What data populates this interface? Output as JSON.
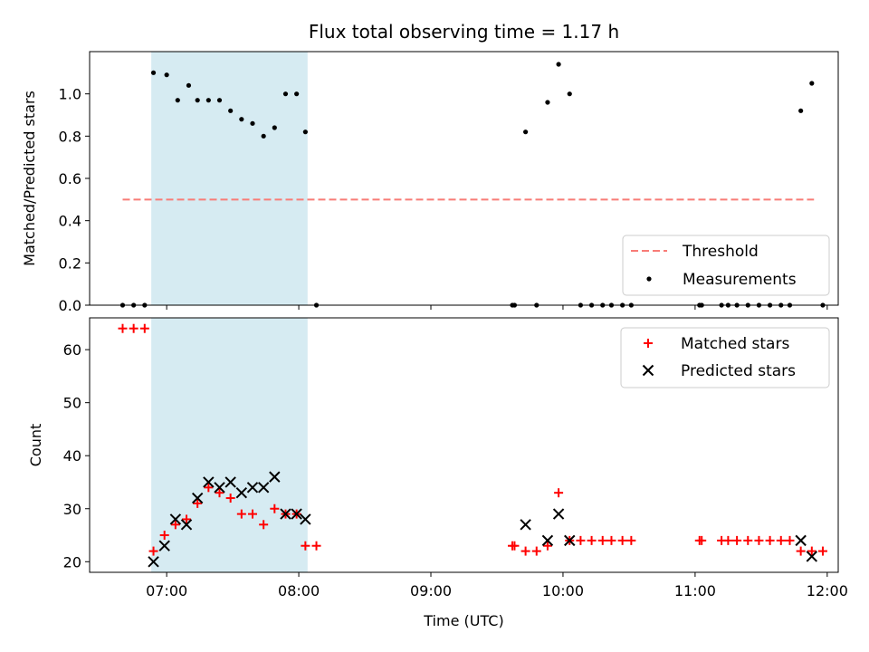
{
  "chart_data": [
    {
      "type": "scatter",
      "title": "Flux total observing time = 1.17 h",
      "ylabel": "Matched/Predicted stars",
      "xlim": [
        "06:25",
        "12:05"
      ],
      "ylim": [
        0,
        1.2
      ],
      "yticks": [
        "0.0",
        "0.2",
        "0.4",
        "0.6",
        "0.8",
        "1.0"
      ],
      "shaded_span": [
        "06:53",
        "08:04"
      ],
      "threshold": {
        "name": "Threshold",
        "value": 0.5,
        "x_range": [
          "06:40",
          "11:54"
        ],
        "color": "#f87c77"
      },
      "series": [
        {
          "name": "Measurements",
          "color": "#000000",
          "points": [
            [
              "06:40",
              0
            ],
            [
              "06:45",
              0
            ],
            [
              "06:50",
              0
            ],
            [
              "06:54",
              1.1
            ],
            [
              "07:00",
              1.09
            ],
            [
              "07:05",
              0.97
            ],
            [
              "07:10",
              1.04
            ],
            [
              "07:14",
              0.97
            ],
            [
              "07:19",
              0.97
            ],
            [
              "07:24",
              0.97
            ],
            [
              "07:29",
              0.92
            ],
            [
              "07:34",
              0.88
            ],
            [
              "07:39",
              0.86
            ],
            [
              "07:44",
              0.8
            ],
            [
              "07:49",
              0.84
            ],
            [
              "07:54",
              1.0
            ],
            [
              "07:59",
              1.0
            ],
            [
              "08:03",
              0.82
            ],
            [
              "08:08",
              0
            ],
            [
              "09:37",
              0
            ],
            [
              "09:38",
              0
            ],
            [
              "09:43",
              0.82
            ],
            [
              "09:48",
              0
            ],
            [
              "09:53",
              0.96
            ],
            [
              "09:58",
              1.14
            ],
            [
              "10:03",
              1.0
            ],
            [
              "10:08",
              0
            ],
            [
              "10:13",
              0
            ],
            [
              "10:18",
              0
            ],
            [
              "10:22",
              0
            ],
            [
              "10:27",
              0
            ],
            [
              "10:31",
              0
            ],
            [
              "11:02",
              0
            ],
            [
              "11:03",
              0
            ],
            [
              "11:12",
              0
            ],
            [
              "11:15",
              0
            ],
            [
              "11:19",
              0
            ],
            [
              "11:24",
              0
            ],
            [
              "11:29",
              0
            ],
            [
              "11:34",
              0
            ],
            [
              "11:39",
              0
            ],
            [
              "11:43",
              0
            ],
            [
              "11:48",
              0.92
            ],
            [
              "11:53",
              1.05
            ],
            [
              "11:58",
              0
            ]
          ]
        }
      ],
      "legend": {
        "placement": "lower right",
        "entries": [
          "Threshold",
          "Measurements"
        ]
      }
    },
    {
      "type": "scatter",
      "xlabel": "Time (UTC)",
      "ylabel": "Count",
      "xlim": [
        "06:25",
        "12:05"
      ],
      "ylim": [
        18,
        66
      ],
      "xticks": [
        "07:00",
        "08:00",
        "09:00",
        "10:00",
        "11:00",
        "12:00"
      ],
      "yticks": [
        "20",
        "30",
        "40",
        "50",
        "60"
      ],
      "shaded_span": [
        "06:53",
        "08:04"
      ],
      "series": [
        {
          "name": "Matched stars",
          "marker": "+",
          "color": "#ff0000",
          "points": [
            [
              "06:40",
              64
            ],
            [
              "06:45",
              64
            ],
            [
              "06:50",
              64
            ],
            [
              "06:54",
              22
            ],
            [
              "06:59",
              25
            ],
            [
              "07:04",
              27
            ],
            [
              "07:09",
              28
            ],
            [
              "07:14",
              31
            ],
            [
              "07:19",
              34
            ],
            [
              "07:24",
              33
            ],
            [
              "07:29",
              32
            ],
            [
              "07:34",
              29
            ],
            [
              "07:39",
              29
            ],
            [
              "07:44",
              27
            ],
            [
              "07:49",
              30
            ],
            [
              "07:54",
              29
            ],
            [
              "07:59",
              29
            ],
            [
              "08:03",
              23
            ],
            [
              "08:08",
              23
            ],
            [
              "09:37",
              23
            ],
            [
              "09:38",
              23
            ],
            [
              "09:43",
              22
            ],
            [
              "09:48",
              22
            ],
            [
              "09:53",
              23
            ],
            [
              "09:58",
              33
            ],
            [
              "10:03",
              24
            ],
            [
              "10:08",
              24
            ],
            [
              "10:13",
              24
            ],
            [
              "10:18",
              24
            ],
            [
              "10:22",
              24
            ],
            [
              "10:27",
              24
            ],
            [
              "10:31",
              24
            ],
            [
              "11:02",
              24
            ],
            [
              "11:03",
              24
            ],
            [
              "11:12",
              24
            ],
            [
              "11:15",
              24
            ],
            [
              "11:19",
              24
            ],
            [
              "11:24",
              24
            ],
            [
              "11:29",
              24
            ],
            [
              "11:34",
              24
            ],
            [
              "11:39",
              24
            ],
            [
              "11:43",
              24
            ],
            [
              "11:48",
              22
            ],
            [
              "11:53",
              22
            ],
            [
              "11:58",
              22
            ]
          ]
        },
        {
          "name": "Predicted stars",
          "marker": "x",
          "color": "#000000",
          "points": [
            [
              "06:54",
              20
            ],
            [
              "06:59",
              23
            ],
            [
              "07:04",
              28
            ],
            [
              "07:09",
              27
            ],
            [
              "07:14",
              32
            ],
            [
              "07:19",
              35
            ],
            [
              "07:24",
              34
            ],
            [
              "07:29",
              35
            ],
            [
              "07:34",
              33
            ],
            [
              "07:39",
              34
            ],
            [
              "07:44",
              34
            ],
            [
              "07:49",
              36
            ],
            [
              "07:54",
              29
            ],
            [
              "07:59",
              29
            ],
            [
              "08:03",
              28
            ],
            [
              "09:43",
              27
            ],
            [
              "09:53",
              24
            ],
            [
              "09:58",
              29
            ],
            [
              "10:03",
              24
            ],
            [
              "11:48",
              24
            ],
            [
              "11:53",
              21
            ]
          ]
        }
      ],
      "legend": {
        "placement": "upper right",
        "entries": [
          "Matched stars",
          "Predicted stars"
        ]
      }
    }
  ]
}
